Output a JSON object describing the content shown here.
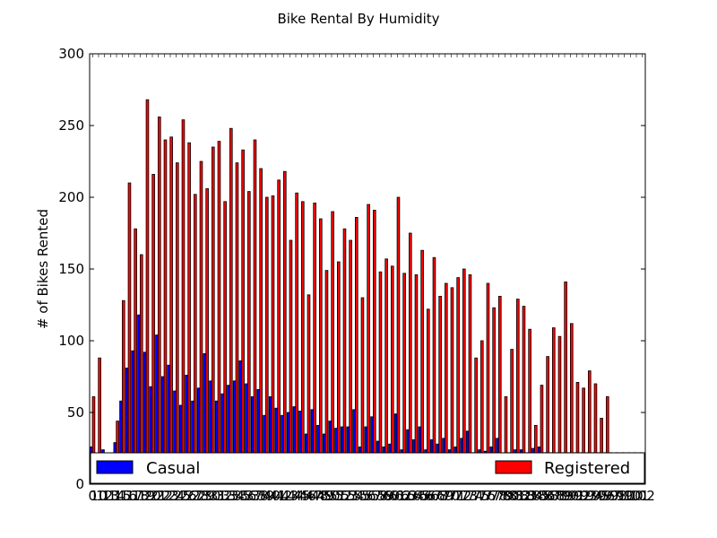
{
  "chart_data": {
    "type": "bar",
    "title": "Bike Rental By Humidity",
    "xlabel": "",
    "ylabel": "# of Bikes Rented",
    "ylim": [
      0,
      300
    ],
    "yticks": [
      0,
      50,
      100,
      150,
      200,
      250,
      300
    ],
    "grid": false,
    "legend_placement": "bottom",
    "categories": [
      "0",
      "10",
      "12",
      "13",
      "14",
      "15",
      "16",
      "17",
      "18",
      "19",
      "20",
      "21",
      "22",
      "23",
      "24",
      "25",
      "26",
      "27",
      "28",
      "29",
      "30",
      "31",
      "32",
      "33",
      "34",
      "35",
      "36",
      "37",
      "38",
      "39",
      "40",
      "41",
      "42",
      "43",
      "44",
      "45",
      "46",
      "47",
      "48",
      "49",
      "50",
      "51",
      "52",
      "53",
      "54",
      "55",
      "56",
      "57",
      "58",
      "59",
      "60",
      "61",
      "62",
      "63",
      "64",
      "65",
      "66",
      "67",
      "68",
      "69",
      "70",
      "71",
      "72",
      "73",
      "74",
      "75",
      "76",
      "77",
      "78",
      "79",
      "80",
      "81",
      "82",
      "83",
      "84",
      "85",
      "86",
      "87",
      "88",
      "89",
      "90",
      "91",
      "92",
      "93",
      "94",
      "95",
      "96",
      "97",
      "98",
      "99",
      "100",
      "101",
      "102"
    ],
    "series": [
      {
        "name": "Casual",
        "color": "#0000ff",
        "values": [
          26,
          0,
          24,
          0,
          29,
          58,
          81,
          93,
          118,
          92,
          68,
          104,
          75,
          83,
          65,
          55,
          76,
          58,
          67,
          91,
          72,
          58,
          63,
          69,
          72,
          86,
          70,
          61,
          66,
          48,
          61,
          53,
          48,
          50,
          54,
          51,
          35,
          52,
          41,
          35,
          44,
          39,
          40,
          40,
          52,
          26,
          40,
          47,
          30,
          26,
          28,
          49,
          24,
          38,
          31,
          40,
          24,
          31,
          28,
          32,
          24,
          26,
          32,
          37,
          22,
          24,
          23,
          26,
          32,
          21,
          22,
          24,
          24,
          22,
          25,
          26,
          22,
          22,
          22,
          22,
          22,
          22,
          22,
          22,
          22,
          22,
          22,
          22,
          22,
          22,
          22,
          22,
          22
        ],
        "estimated": true
      },
      {
        "name": "Registered",
        "color": "#ff0000",
        "values": [
          61,
          88,
          0,
          0,
          44,
          128,
          210,
          178,
          160,
          268,
          216,
          256,
          240,
          242,
          224,
          254,
          238,
          202,
          225,
          206,
          235,
          239,
          197,
          248,
          224,
          233,
          204,
          240,
          220,
          200,
          201,
          212,
          218,
          170,
          203,
          197,
          132,
          196,
          185,
          149,
          190,
          155,
          178,
          170,
          186,
          130,
          195,
          191,
          148,
          157,
          152,
          200,
          147,
          175,
          146,
          163,
          122,
          158,
          131,
          140,
          137,
          144,
          150,
          146,
          88,
          100,
          140,
          123,
          131,
          61,
          94,
          129,
          124,
          108,
          41,
          69,
          89,
          109,
          103,
          141,
          112,
          71,
          67,
          79,
          70,
          46,
          61,
          0,
          0,
          0,
          0,
          0,
          0
        ],
        "estimated": true
      }
    ],
    "legend": [
      {
        "label": "Casual",
        "color": "#0000ff"
      },
      {
        "label": "Registered",
        "color": "#ff0000"
      }
    ]
  }
}
